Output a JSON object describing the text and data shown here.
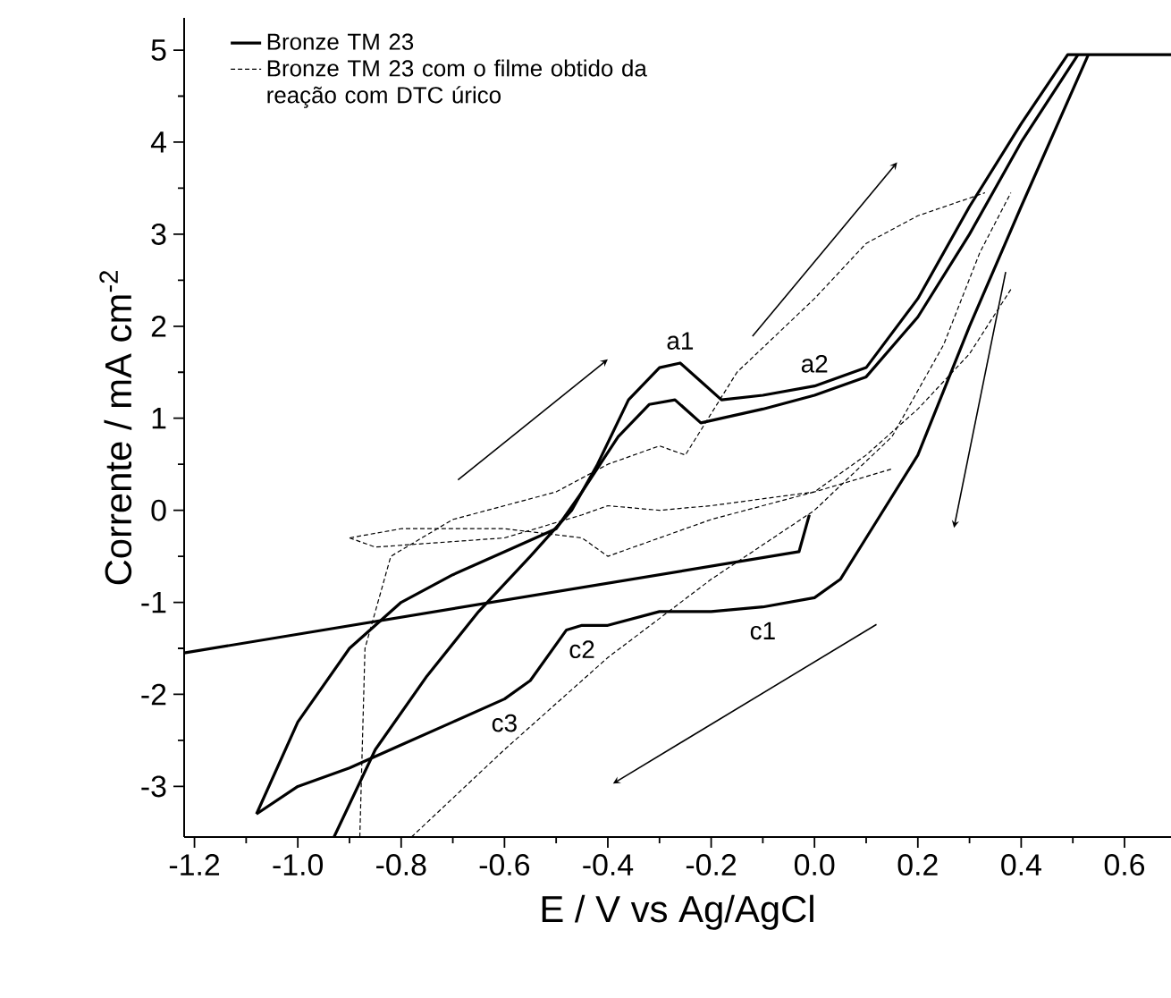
{
  "chart_data": {
    "type": "line",
    "xlabel": "E / V vs Ag/AgCl",
    "ylabel": "Corrente / mA cm$^{-2}$",
    "xlim": [
      -1.22,
      0.69
    ],
    "ylim": [
      -3.55,
      5.35
    ],
    "xticks": [
      -1.2,
      {
        "value": -1.0,
        "label": "-1.0"
      },
      -0.8,
      -0.6,
      -0.4,
      -0.2,
      {
        "value": 0.0,
        "label": "0.0"
      },
      0.2,
      0.4,
      0.6
    ],
    "yticks": [
      -3,
      -2,
      -1,
      0,
      1,
      2,
      3,
      4,
      5
    ],
    "legend": "top left",
    "series": [
      {
        "name": "Bronze TM 23",
        "color": "#000000",
        "line_style": "solid",
        "x": [
          -0.93,
          -0.85,
          -0.75,
          -0.65,
          -0.55,
          -0.47,
          -0.42,
          -0.36,
          -0.3,
          -0.26,
          -0.22,
          -0.18,
          -0.1,
          0.0,
          0.1,
          0.2,
          0.3,
          0.4,
          0.49,
          0.69
        ],
        "values": [
          -3.55,
          -2.6,
          -1.8,
          -1.1,
          -0.5,
          0.0,
          0.5,
          1.2,
          1.55,
          1.6,
          1.4,
          1.2,
          1.25,
          1.35,
          1.55,
          2.3,
          3.3,
          4.2,
          4.95,
          4.95
        ]
      },
      {
        "color": "#000000",
        "line_style": "solid",
        "x": [
          -1.22,
          -0.03,
          -0.01
        ],
        "values": [
          -1.55,
          -0.45,
          -0.05
        ]
      },
      {
        "color": "#000000",
        "line_style": "solid",
        "x": [
          -1.08,
          -1.0,
          -0.9,
          -0.8,
          -0.7,
          -0.6,
          -0.5,
          -0.45,
          -0.38,
          -0.32,
          -0.27,
          -0.22,
          -0.1,
          0.0,
          0.1,
          0.2,
          0.3,
          0.4,
          0.51
        ],
        "values": [
          -3.3,
          -2.3,
          -1.5,
          -1.0,
          -0.7,
          -0.45,
          -0.2,
          0.2,
          0.8,
          1.15,
          1.2,
          0.95,
          1.1,
          1.25,
          1.45,
          2.1,
          3.0,
          4.0,
          4.95
        ]
      },
      {
        "color": "#000000",
        "line_style": "solid",
        "x": [
          0.53,
          0.4,
          0.3,
          0.2,
          0.1,
          0.05,
          0.0,
          -0.1,
          -0.2,
          -0.3,
          -0.4,
          -0.45,
          -0.48,
          -0.55,
          -0.6,
          -0.7,
          -0.8,
          -0.9,
          -1.0,
          -1.08
        ],
        "values": [
          4.95,
          3.3,
          2.0,
          0.6,
          -0.3,
          -0.75,
          -0.95,
          -1.05,
          -1.1,
          -1.1,
          -1.25,
          -1.25,
          -1.3,
          -1.85,
          -2.05,
          -2.3,
          -2.55,
          -2.8,
          -3.0,
          -3.3
        ]
      },
      {
        "name": "Bronze TM 23 com o filme obtido da reação com DTC úrico",
        "color": "#000000",
        "line_style": "dashed",
        "x": [
          -0.78,
          -0.6,
          -0.4,
          -0.2,
          0.0,
          0.15,
          0.25,
          0.32,
          0.38
        ],
        "values": [
          -3.55,
          -2.6,
          -1.6,
          -0.75,
          0.0,
          0.8,
          1.8,
          2.8,
          3.45
        ]
      },
      {
        "color": "#000000",
        "line_style": "dashed",
        "x": [
          0.38,
          0.3,
          0.2,
          0.1,
          0.0,
          -0.2,
          -0.35,
          -0.4,
          -0.45,
          -0.6,
          -0.8,
          -0.9
        ],
        "values": [
          2.4,
          1.7,
          1.1,
          0.6,
          0.2,
          -0.1,
          -0.4,
          -0.5,
          -0.3,
          -0.2,
          -0.2,
          -0.3
        ]
      },
      {
        "color": "#000000",
        "line_style": "dashed",
        "x": [
          -0.9,
          -0.85,
          -0.6,
          -0.45,
          -0.4,
          -0.3,
          -0.2,
          0.0,
          0.15
        ],
        "values": [
          -0.3,
          -0.4,
          -0.3,
          -0.05,
          0.05,
          0.0,
          0.05,
          0.2,
          0.45
        ]
      },
      {
        "color": "#000000",
        "line_style": "dashed",
        "x": [
          -0.88,
          -0.87,
          -0.82,
          -0.7,
          -0.5,
          -0.4,
          -0.3,
          -0.25,
          -0.15,
          0.0,
          0.1,
          0.2,
          0.33
        ],
        "values": [
          -3.55,
          -1.5,
          -0.5,
          -0.1,
          0.2,
          0.5,
          0.7,
          0.6,
          1.5,
          2.3,
          2.9,
          3.2,
          3.45
        ]
      }
    ],
    "annotations": [
      {
        "text": "a1",
        "x": -0.26,
        "y": 1.6
      },
      {
        "text": "a2",
        "x": 0.0,
        "y": 1.35
      },
      {
        "text": "c1",
        "x": -0.1,
        "y": -1.05
      },
      {
        "text": "c2",
        "x": -0.45,
        "y": -1.25
      },
      {
        "text": "c3",
        "x": -0.6,
        "y": -2.05
      }
    ]
  }
}
